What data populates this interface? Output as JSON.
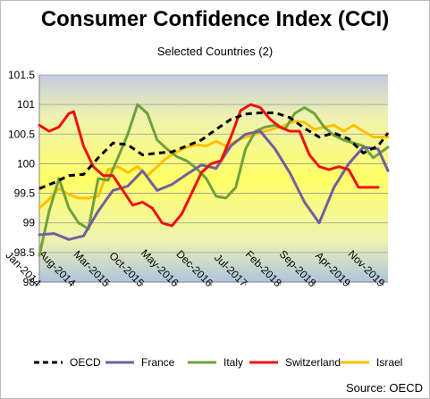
{
  "chart_data": {
    "type": "line",
    "title": "Consumer Confidence Index (CCI)",
    "subtitle": "Selected Countries (2)",
    "source": "Source: OECD",
    "ylim": [
      98,
      101.5
    ],
    "yticks": [
      98,
      98.5,
      99,
      99.5,
      100,
      100.5,
      101,
      101.5
    ],
    "ytick_labels": [
      "98",
      "98.5",
      "99",
      "99.5",
      "100",
      "100.5",
      "101",
      "101.5"
    ],
    "x_tick_labels": [
      "Jan-2014",
      "Aug-2014",
      "Mar-2015",
      "Oct-2015",
      "May-2016",
      "Dec-2016",
      "Jul-2017",
      "Feb-2018",
      "Sep-2018",
      "Apr-2019",
      "Nov-2019"
    ],
    "x_tick_months": [
      "2014-01",
      "2014-08",
      "2015-03",
      "2015-10",
      "2016-05",
      "2016-12",
      "2017-07",
      "2018-02",
      "2018-09",
      "2019-04",
      "2019-11"
    ],
    "x_range": [
      "2014-01",
      "2019-12"
    ],
    "grid": true,
    "legend_position": "bottom",
    "series": [
      {
        "name": "OECD",
        "color": "#000000",
        "dash": "dashed",
        "x": [
          "2014-01",
          "2014-04",
          "2014-07",
          "2014-10",
          "2015-01",
          "2015-04",
          "2015-07",
          "2015-10",
          "2016-01",
          "2016-04",
          "2016-07",
          "2016-10",
          "2017-01",
          "2017-04",
          "2017-07",
          "2017-10",
          "2018-01",
          "2018-04",
          "2018-07",
          "2018-10",
          "2019-01",
          "2019-04",
          "2019-07",
          "2019-10",
          "2019-12"
        ],
        "values": [
          99.58,
          99.68,
          99.8,
          99.82,
          100.1,
          100.35,
          100.32,
          100.15,
          100.18,
          100.2,
          100.3,
          100.4,
          100.58,
          100.75,
          100.84,
          100.86,
          100.86,
          100.78,
          100.6,
          100.45,
          100.52,
          100.42,
          100.18,
          100.3,
          100.52
        ]
      },
      {
        "name": "France",
        "color": "#7060a0",
        "dash": "solid",
        "x": [
          "2014-01",
          "2014-04",
          "2014-07",
          "2014-10",
          "2015-01",
          "2015-04",
          "2015-07",
          "2015-10",
          "2016-01",
          "2016-04",
          "2016-07",
          "2016-10",
          "2017-01",
          "2017-04",
          "2017-07",
          "2017-10",
          "2018-01",
          "2018-04",
          "2018-07",
          "2018-10",
          "2019-01",
          "2019-04",
          "2019-07",
          "2019-10",
          "2019-12"
        ],
        "values": [
          98.8,
          98.82,
          98.72,
          98.78,
          99.2,
          99.55,
          99.62,
          99.88,
          99.55,
          99.65,
          99.82,
          99.98,
          99.92,
          100.3,
          100.5,
          100.55,
          100.25,
          99.85,
          99.35,
          99.0,
          99.6,
          100.0,
          100.28,
          100.25,
          99.88
        ]
      },
      {
        "name": "Italy",
        "color": "#70a040",
        "dash": "solid",
        "x": [
          "2014-01",
          "2014-03",
          "2014-05",
          "2014-07",
          "2014-09",
          "2014-11",
          "2015-01",
          "2015-03",
          "2015-05",
          "2015-07",
          "2015-09",
          "2015-11",
          "2016-01",
          "2016-03",
          "2016-05",
          "2016-07",
          "2016-09",
          "2016-11",
          "2017-01",
          "2017-03",
          "2017-05",
          "2017-07",
          "2017-09",
          "2017-11",
          "2018-01",
          "2018-03",
          "2018-05",
          "2018-07",
          "2018-09",
          "2018-11",
          "2019-01",
          "2019-03",
          "2019-05",
          "2019-07",
          "2019-09",
          "2019-12"
        ],
        "values": [
          98.45,
          99.2,
          99.75,
          99.25,
          99.0,
          98.9,
          99.75,
          99.72,
          100.1,
          100.5,
          101.0,
          100.85,
          100.4,
          100.25,
          100.12,
          100.05,
          99.92,
          99.75,
          99.45,
          99.42,
          99.6,
          100.25,
          100.55,
          100.62,
          100.65,
          100.58,
          100.85,
          100.95,
          100.85,
          100.62,
          100.48,
          100.4,
          100.35,
          100.3,
          100.1,
          100.28
        ]
      },
      {
        "name": "Switzerland",
        "color": "#ee1111",
        "dash": "solid",
        "x": [
          "2014-01",
          "2014-03",
          "2014-05",
          "2014-07",
          "2014-08",
          "2014-10",
          "2014-12",
          "2015-02",
          "2015-04",
          "2015-06",
          "2015-08",
          "2015-10",
          "2015-12",
          "2016-02",
          "2016-04",
          "2016-06",
          "2016-08",
          "2016-10",
          "2016-12",
          "2017-02",
          "2017-04",
          "2017-06",
          "2017-08",
          "2017-10",
          "2017-12",
          "2018-02",
          "2018-04",
          "2018-06",
          "2018-08",
          "2018-10",
          "2018-12",
          "2019-02",
          "2019-04",
          "2019-06",
          "2019-08",
          "2019-10"
        ],
        "values": [
          100.65,
          100.55,
          100.62,
          100.85,
          100.88,
          100.3,
          99.95,
          99.8,
          99.8,
          99.55,
          99.3,
          99.35,
          99.25,
          99.0,
          98.95,
          99.15,
          99.5,
          99.85,
          100.0,
          100.05,
          100.45,
          100.9,
          101.0,
          100.95,
          100.75,
          100.62,
          100.55,
          100.55,
          100.15,
          99.95,
          99.9,
          99.95,
          99.9,
          99.6,
          99.6,
          99.6
        ]
      },
      {
        "name": "Israel",
        "color": "#ffc000",
        "dash": "solid",
        "x": [
          "2014-01",
          "2014-03",
          "2014-05",
          "2014-07",
          "2014-09",
          "2014-11",
          "2015-01",
          "2015-03",
          "2015-05",
          "2015-07",
          "2015-09",
          "2015-11",
          "2016-01",
          "2016-03",
          "2016-05",
          "2016-07",
          "2016-09",
          "2016-11",
          "2017-01",
          "2017-03",
          "2017-05",
          "2017-07",
          "2017-09",
          "2017-11",
          "2018-01",
          "2018-03",
          "2018-05",
          "2018-07",
          "2018-09",
          "2018-11",
          "2019-01",
          "2019-03",
          "2019-05",
          "2019-07",
          "2019-09",
          "2019-12"
        ],
        "values": [
          99.25,
          99.4,
          99.58,
          99.48,
          99.42,
          99.42,
          99.45,
          99.9,
          99.95,
          99.85,
          99.95,
          99.8,
          99.95,
          100.1,
          100.2,
          100.28,
          100.32,
          100.3,
          100.38,
          100.3,
          100.38,
          100.45,
          100.5,
          100.55,
          100.6,
          100.65,
          100.72,
          100.7,
          100.58,
          100.62,
          100.65,
          100.55,
          100.65,
          100.55,
          100.45,
          100.45
        ]
      }
    ]
  }
}
